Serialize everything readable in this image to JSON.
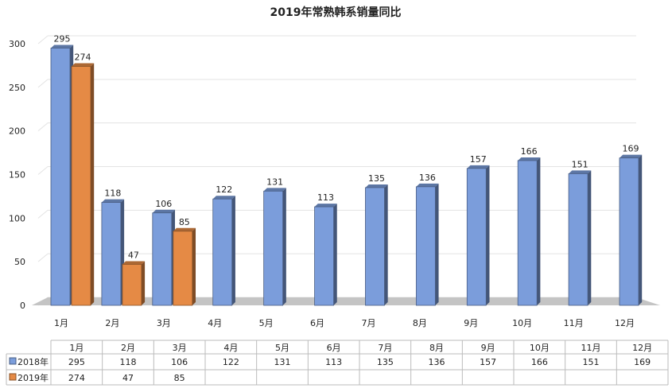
{
  "chart_data": {
    "type": "bar",
    "title": "2019年常熟韩系销量同比",
    "categories": [
      "1月",
      "2月",
      "3月",
      "4月",
      "5月",
      "6月",
      "7月",
      "8月",
      "9月",
      "10月",
      "11月",
      "12月"
    ],
    "series": [
      {
        "name": "2018年",
        "values": [
          295,
          118,
          106,
          122,
          131,
          113,
          135,
          136,
          157,
          166,
          151,
          169
        ],
        "color": "#7b9ddb"
      },
      {
        "name": "2019年",
        "values": [
          274,
          47,
          85,
          null,
          null,
          null,
          null,
          null,
          null,
          null,
          null,
          null
        ],
        "color": "#e58a45"
      }
    ],
    "ylim": [
      0,
      300
    ],
    "yticks": [
      0,
      50,
      100,
      150,
      200,
      250,
      300
    ],
    "grid": true,
    "legend": "data-table",
    "xlabel": "",
    "ylabel": ""
  }
}
